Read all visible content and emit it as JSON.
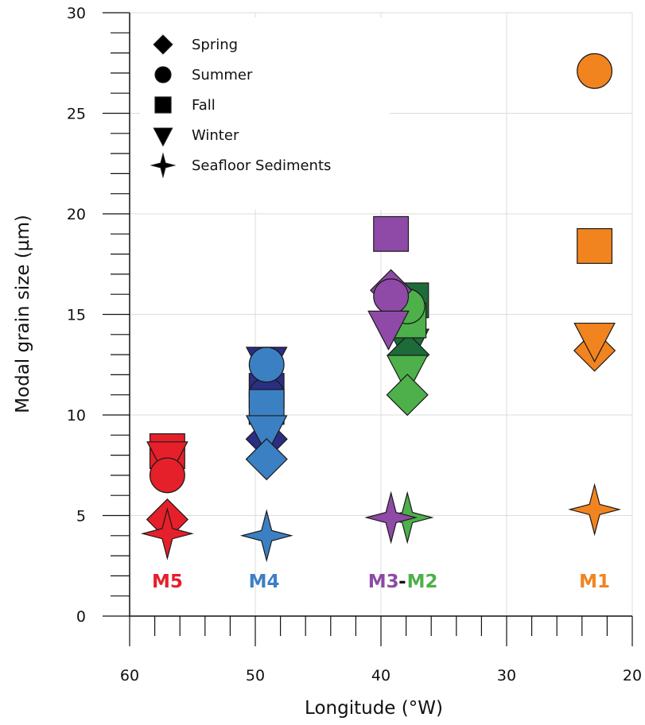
{
  "chart_data": {
    "type": "scatter",
    "xlabel": "Longitude (°W)",
    "ylabel": "Modal grain size (µm)",
    "xlim": [
      60,
      20
    ],
    "ylim": [
      0,
      30
    ],
    "x_ticks": [
      "60",
      "50",
      "40",
      "30",
      "20"
    ],
    "y_ticks": [
      "0",
      "5",
      "10",
      "15",
      "20",
      "25",
      "30"
    ],
    "grid": true,
    "legend_position": "top-left",
    "legend": [
      {
        "label": "Spring",
        "marker": "diamond"
      },
      {
        "label": "Summer",
        "marker": "circle"
      },
      {
        "label": "Fall",
        "marker": "square"
      },
      {
        "label": "Winter",
        "marker": "triangle-down"
      },
      {
        "label": "Seafloor Sediments",
        "marker": "star4"
      }
    ],
    "series": [
      {
        "station": "M5",
        "color": "#e5202a",
        "points": [
          {
            "marker": "square",
            "x": 57,
            "y": 8.2
          },
          {
            "marker": "triangle-down",
            "x": 57,
            "y": 7.9
          },
          {
            "marker": "circle",
            "x": 57,
            "y": 7.0
          },
          {
            "marker": "diamond",
            "x": 57,
            "y": 4.8
          },
          {
            "marker": "star4",
            "x": 57,
            "y": 4.1
          }
        ]
      },
      {
        "station": "M4",
        "color": "#2b2e83",
        "points": [
          {
            "marker": "square",
            "x": 49.1,
            "y": 11.2
          },
          {
            "marker": "triangle-down",
            "x": 49.1,
            "y": 12.6
          },
          {
            "marker": "circle",
            "x": 49.1,
            "y": 11.0
          },
          {
            "marker": "diamond",
            "x": 49.1,
            "y": 8.8
          }
        ]
      },
      {
        "station": "M4",
        "color": "#3c80c4",
        "points": [
          {
            "marker": "square",
            "x": 49.1,
            "y": 10.4
          },
          {
            "marker": "circle",
            "x": 49.1,
            "y": 12.5
          },
          {
            "marker": "triangle-down",
            "x": 49.1,
            "y": 9.2
          },
          {
            "marker": "diamond",
            "x": 49.1,
            "y": 7.8
          },
          {
            "marker": "star4",
            "x": 49.1,
            "y": 4.0
          }
        ]
      },
      {
        "station": "M2",
        "color": "#1e6b3a",
        "points": [
          {
            "marker": "square",
            "x": 37.6,
            "y": 15.7
          },
          {
            "marker": "circle",
            "x": 37.8,
            "y": 14.5
          },
          {
            "marker": "triangle-down",
            "x": 37.8,
            "y": 13.5
          },
          {
            "marker": "diamond",
            "x": 37.8,
            "y": 13.0
          }
        ]
      },
      {
        "station": "M2",
        "color": "#4db04a",
        "points": [
          {
            "marker": "square",
            "x": 37.8,
            "y": 14.7
          },
          {
            "marker": "circle",
            "x": 37.9,
            "y": 15.4
          },
          {
            "marker": "triangle-down",
            "x": 37.9,
            "y": 12.2
          },
          {
            "marker": "diamond",
            "x": 37.9,
            "y": 11.0
          },
          {
            "marker": "star4",
            "x": 37.9,
            "y": 4.9
          }
        ]
      },
      {
        "station": "M3",
        "color": "#8e4aa6",
        "points": [
          {
            "marker": "square",
            "x": 39.2,
            "y": 19.0
          },
          {
            "marker": "diamond",
            "x": 39.2,
            "y": 16.2
          },
          {
            "marker": "circle",
            "x": 39.2,
            "y": 15.9
          },
          {
            "marker": "triangle-down",
            "x": 39.4,
            "y": 14.4
          },
          {
            "marker": "star4",
            "x": 39.2,
            "y": 4.9
          }
        ]
      },
      {
        "station": "M1",
        "color": "#f28420",
        "points": [
          {
            "marker": "circle",
            "x": 23,
            "y": 27.1
          },
          {
            "marker": "square",
            "x": 23,
            "y": 18.4
          },
          {
            "marker": "diamond",
            "x": 23,
            "y": 13.2
          },
          {
            "marker": "triangle-down",
            "x": 23,
            "y": 13.8
          },
          {
            "marker": "star4",
            "x": 23,
            "y": 5.3
          }
        ]
      }
    ],
    "station_labels": [
      {
        "text": "M5",
        "color": "#e5202a",
        "x": 57
      },
      {
        "text": "M4",
        "color": "#3c80c4",
        "x": 49.3
      },
      {
        "text": "M3",
        "color": "#8e4aa6",
        "x": 39.8
      },
      {
        "text": "-",
        "color": "#111111",
        "x": 38.3
      },
      {
        "text": "M2",
        "color": "#4db04a",
        "x": 36.7
      },
      {
        "text": "M1",
        "color": "#f28420",
        "x": 23
      }
    ]
  }
}
